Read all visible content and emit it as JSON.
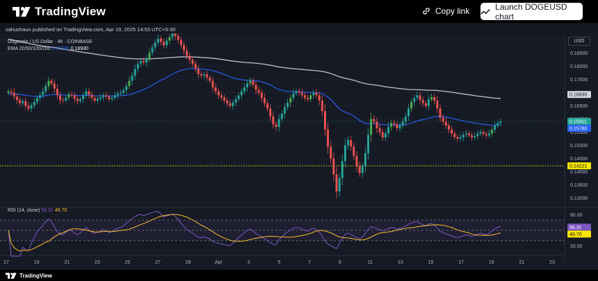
{
  "header": {
    "brand_name": "TradingView",
    "copy_link_label": "Copy link",
    "launch_button_label": "Launch DOGEUSD chart"
  },
  "publisher_line": "sahushaun published on TradingView.com, Apr 19, 2025 14:53 UTC+5:30",
  "legend": {
    "symbol_line": "Dogecoin / US Dollar · 4h · COINBASE",
    "ema_label": "EMA 20/50/100/200",
    "ema_value_1": "0.15780",
    "ema_value_2": "0.16930"
  },
  "rsi_legend": {
    "label": "RSI (14, close)",
    "value_1": "56.31",
    "value_2": "49.70"
  },
  "currency_label": "USD",
  "footer_brand": "TradingView",
  "colors": {
    "up": "#26a69a",
    "up_bright": "#4caf50",
    "down": "#ef5350",
    "ema_fast": "#2962ff",
    "ema_slow": "#d1d4dc",
    "rsi": "#7e57c2",
    "rsi_ma": "#fbc02d",
    "support": "#f7e600"
  },
  "chart_data": {
    "type": "candlestick",
    "interval": "4h",
    "price_axis": {
      "min": 0.128,
      "max": 0.192,
      "ticks": [
        "0.19000",
        "0.18500",
        "0.18000",
        "0.17500",
        "0.17000",
        "0.16500",
        "0.16000",
        "0.15500",
        "0.15000",
        "0.14500",
        "0.14000",
        "0.13500",
        "0.13000"
      ],
      "tick_values": [
        0.19,
        0.185,
        0.18,
        0.175,
        0.17,
        0.165,
        0.16,
        0.155,
        0.15,
        0.145,
        0.14,
        0.135,
        0.13
      ]
    },
    "price_labels": [
      {
        "text": "0.16930",
        "value": 0.1693,
        "style": "white"
      },
      {
        "text": "0.15911",
        "value": 0.15911,
        "style": "green"
      },
      {
        "text": "0.15780",
        "value": 0.1578,
        "style": "blue"
      },
      {
        "text": "0.14221",
        "value": 0.14221,
        "style": "yellow"
      }
    ],
    "support_level": 0.14221,
    "last_price": 0.15911,
    "x_labels": [
      "17",
      "19",
      "21",
      "23",
      "25",
      "27",
      "29",
      "Apr",
      "3",
      "5",
      "7",
      "9",
      "11",
      "13",
      "15",
      "17",
      "19",
      "21",
      "23"
    ],
    "rsi_axis": {
      "min": 15,
      "max": 85,
      "ticks": [
        "80.00",
        "20.00"
      ],
      "tick_values": [
        80,
        20
      ],
      "band_upper": 70,
      "band_mid": 50,
      "band_lower": 30
    },
    "rsi_labels": [
      {
        "text": "56.31",
        "value": 56.31,
        "style": "purple"
      },
      {
        "text": "49.70",
        "value": 49.7,
        "style": "yellow"
      }
    ],
    "closes": [
      0.1705,
      0.17,
      0.1685,
      0.1672,
      0.166,
      0.1668,
      0.165,
      0.164,
      0.1652,
      0.1665,
      0.168,
      0.169,
      0.1705,
      0.1725,
      0.1745,
      0.1735,
      0.1715,
      0.169,
      0.1672,
      0.167,
      0.1682,
      0.1693,
      0.169,
      0.1677,
      0.1668,
      0.1675,
      0.169,
      0.1705,
      0.1692,
      0.168,
      0.167,
      0.1677,
      0.1682,
      0.169,
      0.1685,
      0.1675,
      0.168,
      0.169,
      0.1697,
      0.17,
      0.171,
      0.1725,
      0.1745,
      0.1765,
      0.179,
      0.181,
      0.182,
      0.1815,
      0.183,
      0.1852,
      0.1872,
      0.189,
      0.1905,
      0.1893,
      0.188,
      0.1898,
      0.191,
      0.1925,
      0.1915,
      0.19,
      0.188,
      0.186,
      0.184,
      0.1825,
      0.181,
      0.179,
      0.177,
      0.1765,
      0.177,
      0.1757,
      0.1745,
      0.172,
      0.1705,
      0.169,
      0.1682,
      0.167,
      0.166,
      0.165,
      0.1662,
      0.1675,
      0.169,
      0.1705,
      0.172,
      0.1735,
      0.1745,
      0.173,
      0.171,
      0.17,
      0.168,
      0.166,
      0.164,
      0.161,
      0.158,
      0.157,
      0.16,
      0.162,
      0.1645,
      0.1662,
      0.168,
      0.1697,
      0.1705,
      0.17,
      0.169,
      0.168,
      0.1675,
      0.169,
      0.17,
      0.169,
      0.167,
      0.163,
      0.156,
      0.1495,
      0.145,
      0.139,
      0.1325,
      0.1375,
      0.144,
      0.15,
      0.152,
      0.1495,
      0.146,
      0.142,
      0.1395,
      0.142,
      0.147,
      0.154,
      0.16,
      0.159,
      0.1565,
      0.155,
      0.153,
      0.1545,
      0.157,
      0.1585,
      0.158,
      0.1565,
      0.1575,
      0.159,
      0.161,
      0.164,
      0.1665,
      0.168,
      0.169,
      0.1672,
      0.166,
      0.165,
      0.1675,
      0.1683,
      0.167,
      0.164,
      0.1605,
      0.159,
      0.1575,
      0.156,
      0.1545,
      0.1532,
      0.1525,
      0.153,
      0.154,
      0.1545,
      0.1538,
      0.153,
      0.1535,
      0.1545,
      0.155,
      0.1543,
      0.1538,
      0.1545,
      0.156,
      0.1575,
      0.1585,
      0.1591
    ]
  }
}
